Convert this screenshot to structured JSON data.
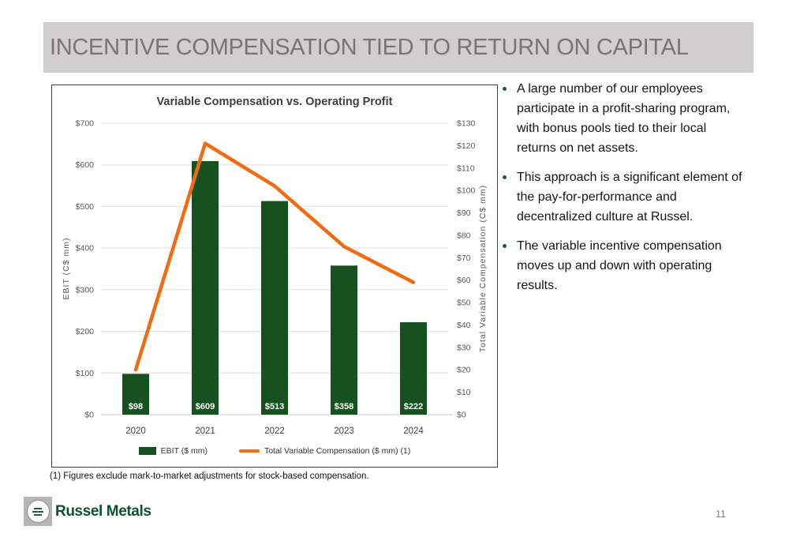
{
  "slide": {
    "title": "INCENTIVE COMPENSATION TIED TO RETURN ON CAPITAL",
    "footnote": "(1) Figures exclude mark-to-market adjustments for stock-based compensation.",
    "logo_text": "Russel Metals",
    "page_number": "11"
  },
  "bullets": [
    "A large number of our employees participate in a profit-sharing program, with bonus pools tied to their local returns on net assets.",
    "This approach is a significant element of the pay-for-performance and decentralized culture at Russel.",
    "The variable incentive compensation moves up and down with operating results."
  ],
  "chart_data": {
    "type": "bar",
    "subtype": "combo-bar-line-dual-axis",
    "title": "Variable Compensation vs. Operating Profit",
    "categories": [
      "2020",
      "2021",
      "2022",
      "2023",
      "2024"
    ],
    "series": [
      {
        "name": "EBIT ($ mm)",
        "type": "bar",
        "axis": "left",
        "values": [
          98,
          609,
          513,
          358,
          222
        ],
        "labels": [
          "$98",
          "$609",
          "$513",
          "$358",
          "$222"
        ],
        "color": "#17511F"
      },
      {
        "name": "Total Variable Compensation ($ mm) (1)",
        "type": "line",
        "axis": "right",
        "values": [
          20,
          121,
          102,
          75,
          59
        ],
        "color": "#F26B10"
      }
    ],
    "left_axis": {
      "label": "EBIT (C$ mm)",
      "min": 0,
      "max": 700,
      "step": 100,
      "prefix": "$"
    },
    "right_axis": {
      "label": "Total Variable Compensation (C$ mm)",
      "min": 0,
      "max": 130,
      "step": 10,
      "prefix": "$"
    },
    "grid": "horizontal",
    "legend_position": "bottom"
  },
  "colors": {
    "banner_bg": "#D0CECE",
    "banner_text": "#787472",
    "bar_green": "#17511F",
    "line_orange": "#F26B10",
    "bullet_dot": "#1E5B3C",
    "logo_green": "#0D5131",
    "gridline": "#DEDEDE",
    "tick_text": "#595959"
  }
}
